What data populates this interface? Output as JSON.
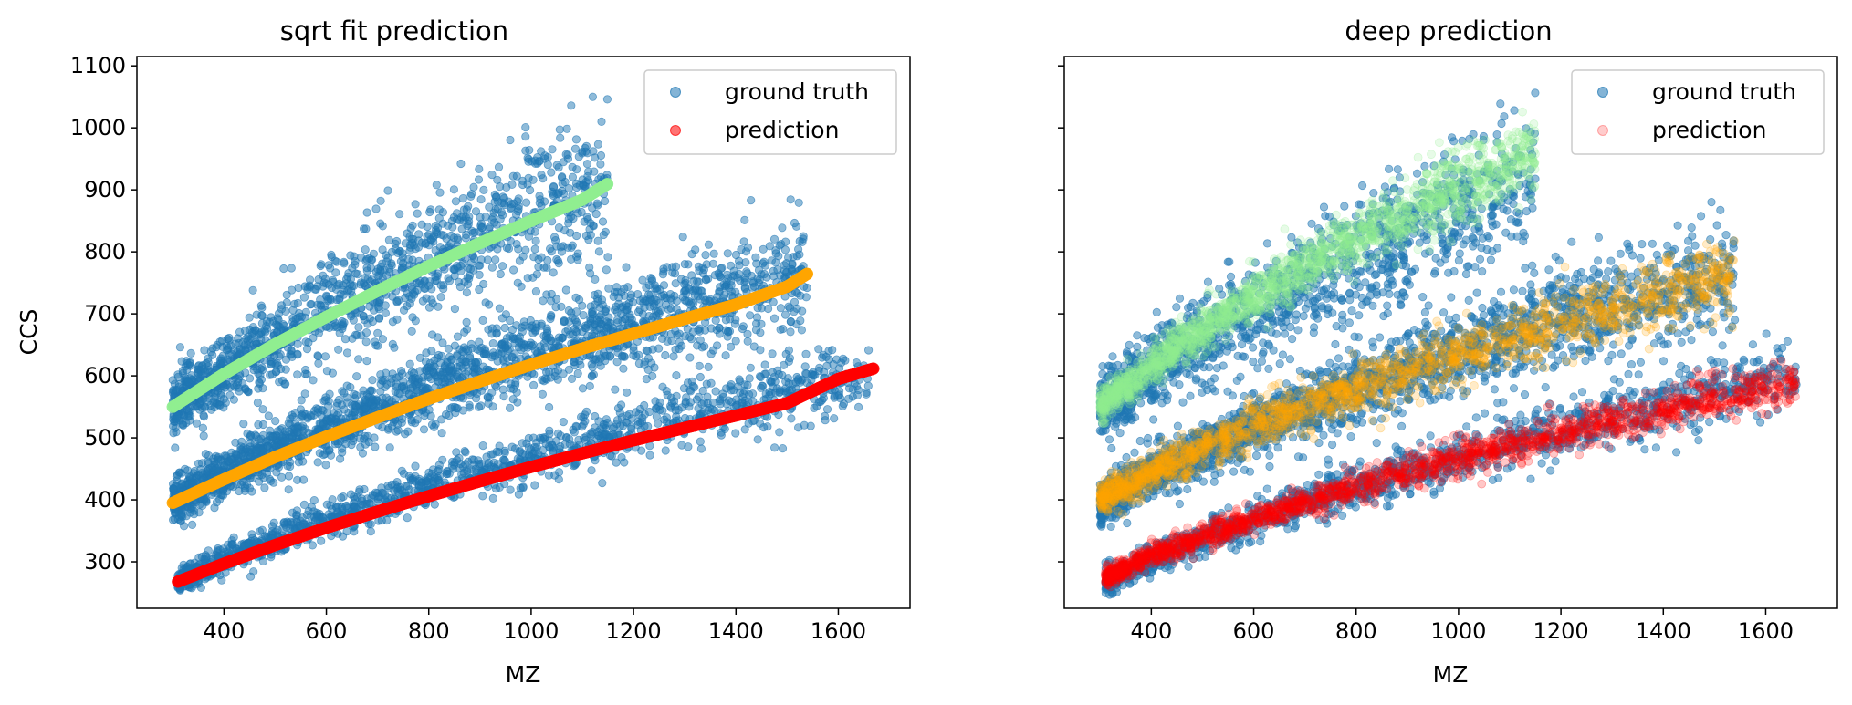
{
  "colors": {
    "ground_truth": "#1f77b4",
    "charge1": "#ff0000",
    "charge2": "#ffa500",
    "charge3": "#90ee90"
  },
  "chart_data": [
    {
      "type": "scatter",
      "title": "sqrt fit prediction",
      "xlabel": "MZ",
      "ylabel": "CCS",
      "xlim": [
        230,
        1740
      ],
      "ylim": [
        225,
        1115
      ],
      "xticks": [
        400,
        600,
        800,
        1000,
        1200,
        1400,
        1600
      ],
      "yticks": [
        300,
        400,
        500,
        600,
        700,
        800,
        900,
        1000,
        1100
      ],
      "show_ytick_labels": true,
      "legend": {
        "placement": "top-right",
        "entries": [
          "ground truth",
          "prediction"
        ]
      },
      "ground_truth_bands": [
        {
          "x_range": [
            300,
            1150
          ],
          "center_fit": "sqrt",
          "y_at_start": 550,
          "y_at_end": 910,
          "spread": 45
        },
        {
          "x_range": [
            300,
            1540
          ],
          "center_fit": "sqrt",
          "y_at_start": 395,
          "y_at_end": 765,
          "spread": 32
        },
        {
          "x_range": [
            310,
            1660
          ],
          "center_fit": "sqrt",
          "y_at_start": 268,
          "y_at_end": 600,
          "spread": 20
        }
      ],
      "series": [
        {
          "name": "prediction",
          "color_key": "charge3",
          "style": "curve",
          "x": [
            300,
            400,
            500,
            600,
            700,
            800,
            900,
            1000,
            1100,
            1150
          ],
          "y": [
            550,
            603,
            651,
            695,
            737,
            777,
            814,
            850,
            884,
            910
          ]
        },
        {
          "name": "prediction",
          "color_key": "charge2",
          "style": "curve",
          "x": [
            300,
            400,
            500,
            600,
            700,
            800,
            900,
            1000,
            1100,
            1200,
            1300,
            1400,
            1500,
            1540
          ],
          "y": [
            395,
            433,
            469,
            502,
            533,
            563,
            591,
            618,
            644,
            668,
            692,
            715,
            744,
            765
          ]
        },
        {
          "name": "prediction",
          "color_key": "charge1",
          "style": "curve",
          "x": [
            310,
            400,
            500,
            600,
            700,
            800,
            900,
            1000,
            1100,
            1200,
            1300,
            1400,
            1500,
            1600,
            1670
          ],
          "y": [
            268,
            297,
            327,
            355,
            381,
            406,
            430,
            453,
            475,
            496,
            516,
            536,
            556,
            595,
            612
          ]
        }
      ]
    },
    {
      "type": "scatter",
      "title": "deep prediction",
      "xlabel": "MZ",
      "ylabel": "",
      "xlim": [
        230,
        1740
      ],
      "ylim": [
        225,
        1115
      ],
      "xticks": [
        400,
        600,
        800,
        1000,
        1200,
        1400,
        1600
      ],
      "yticks": [
        300,
        400,
        500,
        600,
        700,
        800,
        900,
        1000,
        1100
      ],
      "show_ytick_labels": false,
      "legend": {
        "placement": "top-right",
        "entries": [
          "ground truth",
          "prediction"
        ]
      },
      "ground_truth_bands": [
        {
          "x_range": [
            300,
            1150
          ],
          "center_fit": "sqrt",
          "y_at_start": 550,
          "y_at_end": 910,
          "spread": 45
        },
        {
          "x_range": [
            300,
            1540
          ],
          "center_fit": "sqrt",
          "y_at_start": 395,
          "y_at_end": 765,
          "spread": 32
        },
        {
          "x_range": [
            310,
            1660
          ],
          "center_fit": "sqrt",
          "y_at_start": 268,
          "y_at_end": 600,
          "spread": 20
        }
      ],
      "prediction_bands": [
        {
          "color_key": "charge3",
          "x_range": [
            300,
            1150
          ],
          "center_fit": "sqrt",
          "y_at_start": 550,
          "y_at_end": 960,
          "spread": 22
        },
        {
          "color_key": "charge2",
          "x_range": [
            300,
            1540
          ],
          "center_fit": "sqrt",
          "y_at_start": 400,
          "y_at_end": 760,
          "spread": 22
        },
        {
          "color_key": "charge1",
          "x_range": [
            310,
            1660
          ],
          "center_fit": "sqrt",
          "y_at_start": 275,
          "y_at_end": 590,
          "spread": 14
        }
      ]
    }
  ]
}
